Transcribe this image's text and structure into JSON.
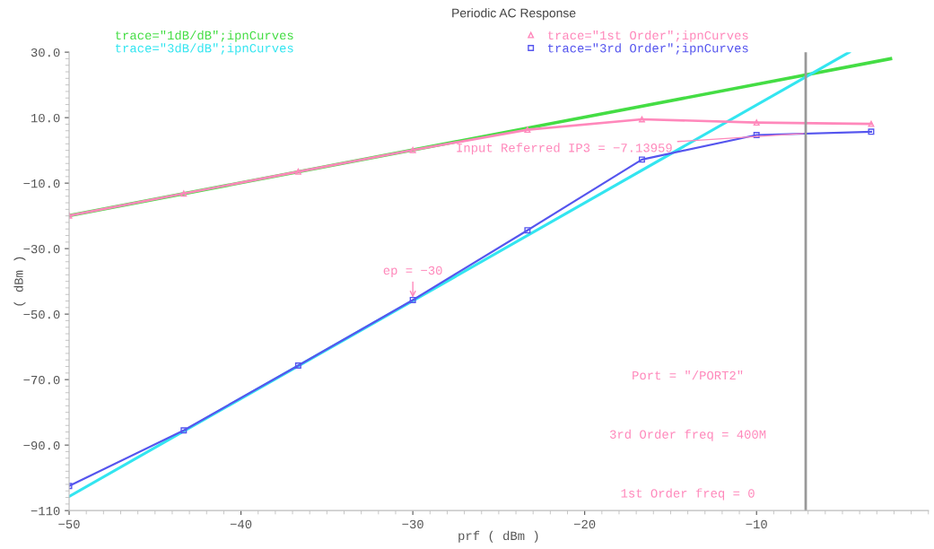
{
  "chart_data": {
    "type": "line",
    "title": "Periodic AC Response",
    "xlabel": "prf ( dBm )",
    "ylabel": "( dBm )",
    "xlim": [
      -50,
      0
    ],
    "xticks": [
      {
        "value": -50,
        "label": "−50"
      },
      {
        "value": -40,
        "label": "−40"
      },
      {
        "value": -30,
        "label": "−30"
      },
      {
        "value": -20,
        "label": "−20"
      },
      {
        "value": -10,
        "label": "−10"
      }
    ],
    "ylim": [
      -110,
      30
    ],
    "yticks": [
      {
        "value": -110,
        "label": "−110"
      },
      {
        "value": -90,
        "label": "−90.0"
      },
      {
        "value": -70,
        "label": "−70.0"
      },
      {
        "value": -50,
        "label": "−50.0"
      },
      {
        "value": -30,
        "label": "−30.0"
      },
      {
        "value": -10,
        "label": "−10.0"
      },
      {
        "value": 10,
        "label": "10.0"
      },
      {
        "value": 30,
        "label": "30.0"
      }
    ],
    "grid": false,
    "legend": "top",
    "series": [
      {
        "name": "trace=\"1dB/dB\";ipnCurves",
        "color": "#44dd44",
        "marker": "none",
        "x": [
          -50,
          -2.2
        ],
        "values": [
          -19.9,
          28
        ]
      },
      {
        "name": "trace=\"3dB/dB\";ipnCurves",
        "color": "#33e5f0",
        "marker": "none",
        "x": [
          -50,
          -4.6
        ],
        "values": [
          -105.7,
          30
        ]
      },
      {
        "name": "trace=\"1st Order\";ipnCurves",
        "color": "#ff88bb",
        "marker": "triangle",
        "x": [
          -50,
          -43.33,
          -36.67,
          -30,
          -23.33,
          -16.67,
          -10,
          -3.33
        ],
        "values": [
          -19.9,
          -13.2,
          -6.5,
          0.1,
          6.3,
          9.5,
          8.5,
          8.1
        ]
      },
      {
        "name": "trace=\"3rd Order\";ipnCurves",
        "color": "#5555ee",
        "marker": "square",
        "x": [
          -50,
          -43.33,
          -36.67,
          -30,
          -23.33,
          -16.67,
          -10,
          -3.33
        ],
        "values": [
          -102.5,
          -85.5,
          -65.7,
          -45.7,
          -24.4,
          -2.8,
          4.7,
          5.7
        ]
      }
    ],
    "ref_lines": [
      {
        "axis": "x",
        "value": -7.13959,
        "color": "#999999"
      }
    ],
    "annotations": [
      {
        "text": "Input Referred IP3 = −7.13959",
        "x": -7.14,
        "y": 5.2
      },
      {
        "text": "ep = −30",
        "x": -30,
        "y": -45.7
      },
      "Port = \"/PORT2\"",
      "3rd Order freq = 400M",
      "1st Order freq = 0"
    ]
  }
}
